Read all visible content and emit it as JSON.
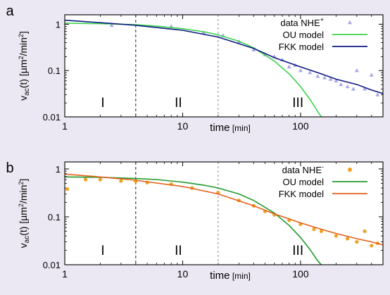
{
  "figure": {
    "background": "#ece8f3",
    "panel_bg": "#ffffff"
  },
  "chart_data": [
    {
      "panel_label": "a",
      "type": "scatter",
      "xlabel_main": "time",
      "xlabel_unit": "[min]",
      "ylabel_main": "v",
      "ylabel_sub": "ac",
      "ylabel_rest": "(t) [µm",
      "ylabel_sup1": "2",
      "ylabel_mid": "/min",
      "ylabel_sup2": "2",
      "ylabel_end": "]",
      "xscale": "log",
      "yscale": "log",
      "xlim": [
        1,
        500
      ],
      "ylim": [
        0.01,
        1.6
      ],
      "x_ticks": [
        1,
        10,
        100
      ],
      "x_tick_labels": [
        "1",
        "10",
        "100"
      ],
      "y_ticks": [
        1,
        0.1,
        0.01
      ],
      "y_tick_labels": [
        "1",
        "0.1",
        "0.01"
      ],
      "regime_boundaries": [
        4,
        20
      ],
      "regime_labels": [
        {
          "text": "I",
          "x": 2.1
        },
        {
          "text": "II",
          "x": 9.2
        },
        {
          "text": "III",
          "x": 95
        }
      ],
      "legend_position": "top-right",
      "legend": [
        {
          "text": "data NHE",
          "sup": "+",
          "kind": "marker",
          "color": "#a7a8e6"
        },
        {
          "text": "OU model",
          "sup": "",
          "kind": "line",
          "color": "#39d34a"
        },
        {
          "text": "FKK model",
          "sup": "",
          "kind": "line",
          "color": "#0d1a82"
        }
      ],
      "series": [
        {
          "name": "data NHE+",
          "kind": "scatter",
          "marker": "triangle",
          "color": "#a7a8e6",
          "points": [
            [
              2.5,
              0.95
            ],
            [
              8,
              0.9
            ],
            [
              15,
              0.66
            ],
            [
              22,
              0.57
            ],
            [
              30,
              0.42
            ],
            [
              40,
              0.28
            ],
            [
              50,
              0.22
            ],
            [
              60,
              0.2
            ],
            [
              70,
              0.17
            ],
            [
              80,
              0.12
            ],
            [
              90,
              0.13
            ],
            [
              100,
              0.1
            ],
            [
              120,
              0.09
            ],
            [
              140,
              0.075
            ],
            [
              160,
              0.07
            ],
            [
              180,
              0.065
            ],
            [
              200,
              0.06
            ],
            [
              220,
              0.05
            ],
            [
              250,
              0.045
            ],
            [
              280,
              0.04
            ],
            [
              300,
              0.1
            ],
            [
              350,
              0.04
            ],
            [
              400,
              0.08
            ],
            [
              450,
              0.03
            ]
          ]
        },
        {
          "name": "OU model",
          "kind": "line",
          "color": "#39d34a",
          "points": [
            [
              1,
              1.05
            ],
            [
              2,
              1.03
            ],
            [
              4,
              0.98
            ],
            [
              6,
              0.91
            ],
            [
              10,
              0.8
            ],
            [
              15,
              0.69
            ],
            [
              20,
              0.59
            ],
            [
              30,
              0.43
            ],
            [
              40,
              0.31
            ],
            [
              60,
              0.16
            ],
            [
              80,
              0.085
            ],
            [
              100,
              0.045
            ],
            [
              120,
              0.024
            ],
            [
              140,
              0.013
            ],
            [
              150,
              0.01
            ]
          ]
        },
        {
          "name": "FKK model",
          "kind": "line",
          "color": "#0d1a82",
          "points": [
            [
              1,
              1.22
            ],
            [
              2,
              1.08
            ],
            [
              4,
              0.95
            ],
            [
              10,
              0.74
            ],
            [
              20,
              0.53
            ],
            [
              40,
              0.3
            ],
            [
              60,
              0.19
            ],
            [
              100,
              0.12
            ],
            [
              150,
              0.085
            ],
            [
              200,
              0.065
            ],
            [
              300,
              0.05
            ],
            [
              400,
              0.038
            ],
            [
              500,
              0.032
            ]
          ]
        }
      ]
    },
    {
      "panel_label": "b",
      "type": "scatter",
      "xlabel_main": "time",
      "xlabel_unit": "[min]",
      "ylabel_main": "v",
      "ylabel_sub": "ac",
      "ylabel_rest": "(t) [µm",
      "ylabel_sup1": "2",
      "ylabel_mid": "/min",
      "ylabel_sup2": "2",
      "ylabel_end": "]",
      "xscale": "log",
      "yscale": "log",
      "xlim": [
        1,
        500
      ],
      "ylim": [
        0.01,
        1.4
      ],
      "x_ticks": [
        1,
        10,
        100
      ],
      "x_tick_labels": [
        "1",
        "10",
        "100"
      ],
      "y_ticks": [
        1,
        0.1,
        0.01
      ],
      "y_tick_labels": [
        "1",
        "0.1",
        "0.01"
      ],
      "regime_boundaries": [
        4,
        20
      ],
      "regime_labels": [
        {
          "text": "I",
          "x": 2.1
        },
        {
          "text": "II",
          "x": 9.2
        },
        {
          "text": "III",
          "x": 95
        }
      ],
      "legend_position": "top-right",
      "legend": [
        {
          "text": "data NHE",
          "sup": "-",
          "kind": "marker",
          "color": "#f2a020"
        },
        {
          "text": "OU model",
          "sup": "",
          "kind": "line",
          "color": "#1f9a2b"
        },
        {
          "text": "FKK model",
          "sup": "",
          "kind": "line",
          "color": "#e5601a"
        }
      ],
      "series": [
        {
          "name": "data NHE-",
          "kind": "scatter",
          "marker": "circle",
          "color": "#f2a020",
          "points": [
            [
              1.05,
              0.38
            ],
            [
              1.5,
              0.6
            ],
            [
              2,
              0.6
            ],
            [
              3,
              0.56
            ],
            [
              4,
              0.55
            ],
            [
              5,
              0.52
            ],
            [
              8,
              0.48
            ],
            [
              12,
              0.4
            ],
            [
              20,
              0.32
            ],
            [
              30,
              0.22
            ],
            [
              40,
              0.17
            ],
            [
              50,
              0.13
            ],
            [
              60,
              0.11
            ],
            [
              80,
              0.085
            ],
            [
              100,
              0.07
            ],
            [
              130,
              0.055
            ],
            [
              150,
              0.05
            ],
            [
              200,
              0.04
            ],
            [
              250,
              0.035
            ],
            [
              300,
              0.03
            ],
            [
              350,
              0.05
            ],
            [
              400,
              0.025
            ],
            [
              450,
              0.028
            ]
          ]
        },
        {
          "name": "OU model",
          "kind": "line",
          "color": "#1f9a2b",
          "points": [
            [
              1,
              0.68
            ],
            [
              2,
              0.67
            ],
            [
              4,
              0.63
            ],
            [
              6,
              0.6
            ],
            [
              10,
              0.53
            ],
            [
              15,
              0.46
            ],
            [
              20,
              0.4
            ],
            [
              30,
              0.3
            ],
            [
              40,
              0.22
            ],
            [
              60,
              0.12
            ],
            [
              80,
              0.066
            ],
            [
              100,
              0.037
            ],
            [
              120,
              0.021
            ],
            [
              140,
              0.012
            ],
            [
              150,
              0.01
            ]
          ]
        },
        {
          "name": "FKK model",
          "kind": "line",
          "color": "#e5601a",
          "points": [
            [
              1,
              0.78
            ],
            [
              2,
              0.68
            ],
            [
              4,
              0.58
            ],
            [
              10,
              0.43
            ],
            [
              20,
              0.3
            ],
            [
              40,
              0.17
            ],
            [
              60,
              0.115
            ],
            [
              100,
              0.075
            ],
            [
              150,
              0.055
            ],
            [
              200,
              0.045
            ],
            [
              300,
              0.035
            ],
            [
              400,
              0.03
            ],
            [
              500,
              0.026
            ]
          ]
        }
      ]
    }
  ]
}
